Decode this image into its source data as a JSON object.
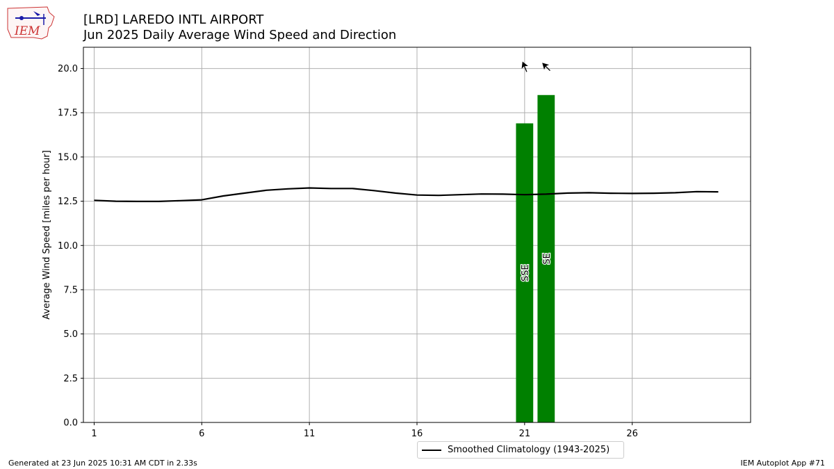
{
  "header": {
    "station_title": "[LRD] LAREDO INTL AIRPORT",
    "subtitle": "Jun 2025 Daily Average Wind Speed and Direction"
  },
  "logo": {
    "text": "IEM",
    "icon": "iem-iowa-logo"
  },
  "footer": {
    "generated": "Generated at 23 Jun 2025 10:31 AM CDT in 2.33s",
    "app": "IEM Autoplot App #71"
  },
  "colors": {
    "bar": "#008000",
    "climatology": "#000000",
    "grid": "#b0b0b0"
  },
  "chart_data": {
    "type": "bar",
    "ylabel": "Average Wind Speed [miles per hour]",
    "xlabel": "",
    "xlim": [
      0.5,
      31.5
    ],
    "ylim": [
      0,
      21.2
    ],
    "x_ticks": [
      1,
      6,
      11,
      16,
      21,
      26
    ],
    "y_ticks": [
      0.0,
      2.5,
      5.0,
      7.5,
      10.0,
      12.5,
      15.0,
      17.5,
      20.0
    ],
    "grid": true,
    "legend_position": "below",
    "bars": [
      {
        "day": 21,
        "speed": 16.9,
        "direction": "SSE",
        "direction_deg": 157.5
      },
      {
        "day": 22,
        "speed": 18.5,
        "direction": "SE",
        "direction_deg": 135
      }
    ],
    "arrow_y": 20.1,
    "series": [
      {
        "name": "Smoothed Climatology (1943-2025)",
        "x": [
          1,
          2,
          3,
          4,
          5,
          6,
          7,
          8,
          9,
          10,
          11,
          12,
          13,
          14,
          15,
          16,
          17,
          18,
          19,
          20,
          21,
          22,
          23,
          24,
          25,
          26,
          27,
          28,
          29,
          30
        ],
        "values": [
          12.55,
          12.5,
          12.49,
          12.49,
          12.53,
          12.58,
          12.8,
          12.96,
          13.12,
          13.2,
          13.25,
          13.22,
          13.22,
          13.1,
          12.96,
          12.85,
          12.83,
          12.87,
          12.91,
          12.9,
          12.87,
          12.9,
          12.96,
          12.98,
          12.95,
          12.94,
          12.95,
          12.98,
          13.04,
          13.03
        ]
      }
    ]
  }
}
